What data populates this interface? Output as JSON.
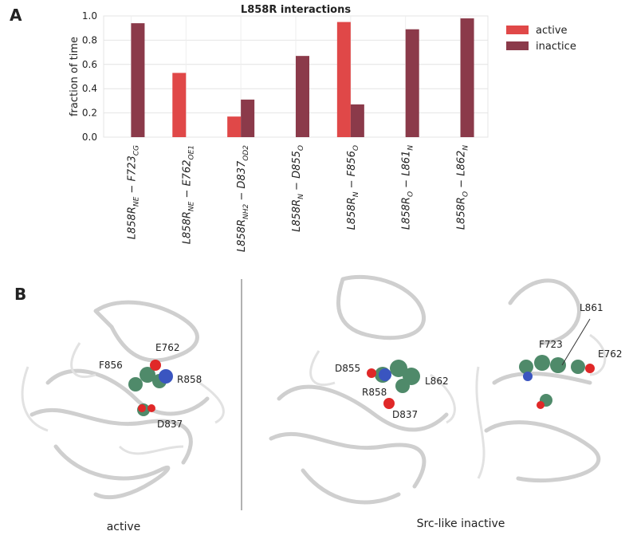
{
  "panel_labels": [
    "A",
    "B"
  ],
  "chart_data": {
    "type": "bar",
    "title": "L858R interactions",
    "y_label": "fraction of time",
    "categories": [
      "L858R_NE − F723_CG",
      "L858R_NE − E762_OE1",
      "L858R_NH2 − D837_OD2",
      "L858R_N − D855_O",
      "L858R_N − F856_O",
      "L858R_O − L861_N",
      "L858R_O − L862_N"
    ],
    "series": [
      {
        "name": "active",
        "color": "#e04848",
        "values": [
          0,
          0.53,
          0.17,
          0,
          0.95,
          0,
          0
        ]
      },
      {
        "name": "inactice",
        "color": "#8b3a4a",
        "values": [
          0.94,
          0,
          0.31,
          0.67,
          0.27,
          0.89,
          0.98
        ]
      }
    ],
    "ylim": [
      0,
      1.0
    ],
    "yticks": [
      {
        "value": 0,
        "label": "0.0"
      },
      {
        "value": 0.2,
        "label": "0.2"
      },
      {
        "value": 0.4,
        "label": "0.4"
      },
      {
        "value": 0.6,
        "label": "0.6"
      },
      {
        "value": 0.8,
        "label": "0.8"
      },
      {
        "value": 1.0,
        "label": "1.0"
      }
    ],
    "grid": true,
    "legend": "outside-right"
  },
  "structures": {
    "captions": [
      "active",
      "Src-like inactive"
    ],
    "active_labels": [
      "E762",
      "F856",
      "R858",
      "D837"
    ],
    "inactive_labels": [
      "D855",
      "R858",
      "L862",
      "D837",
      "L861",
      "F723",
      "E762"
    ]
  }
}
